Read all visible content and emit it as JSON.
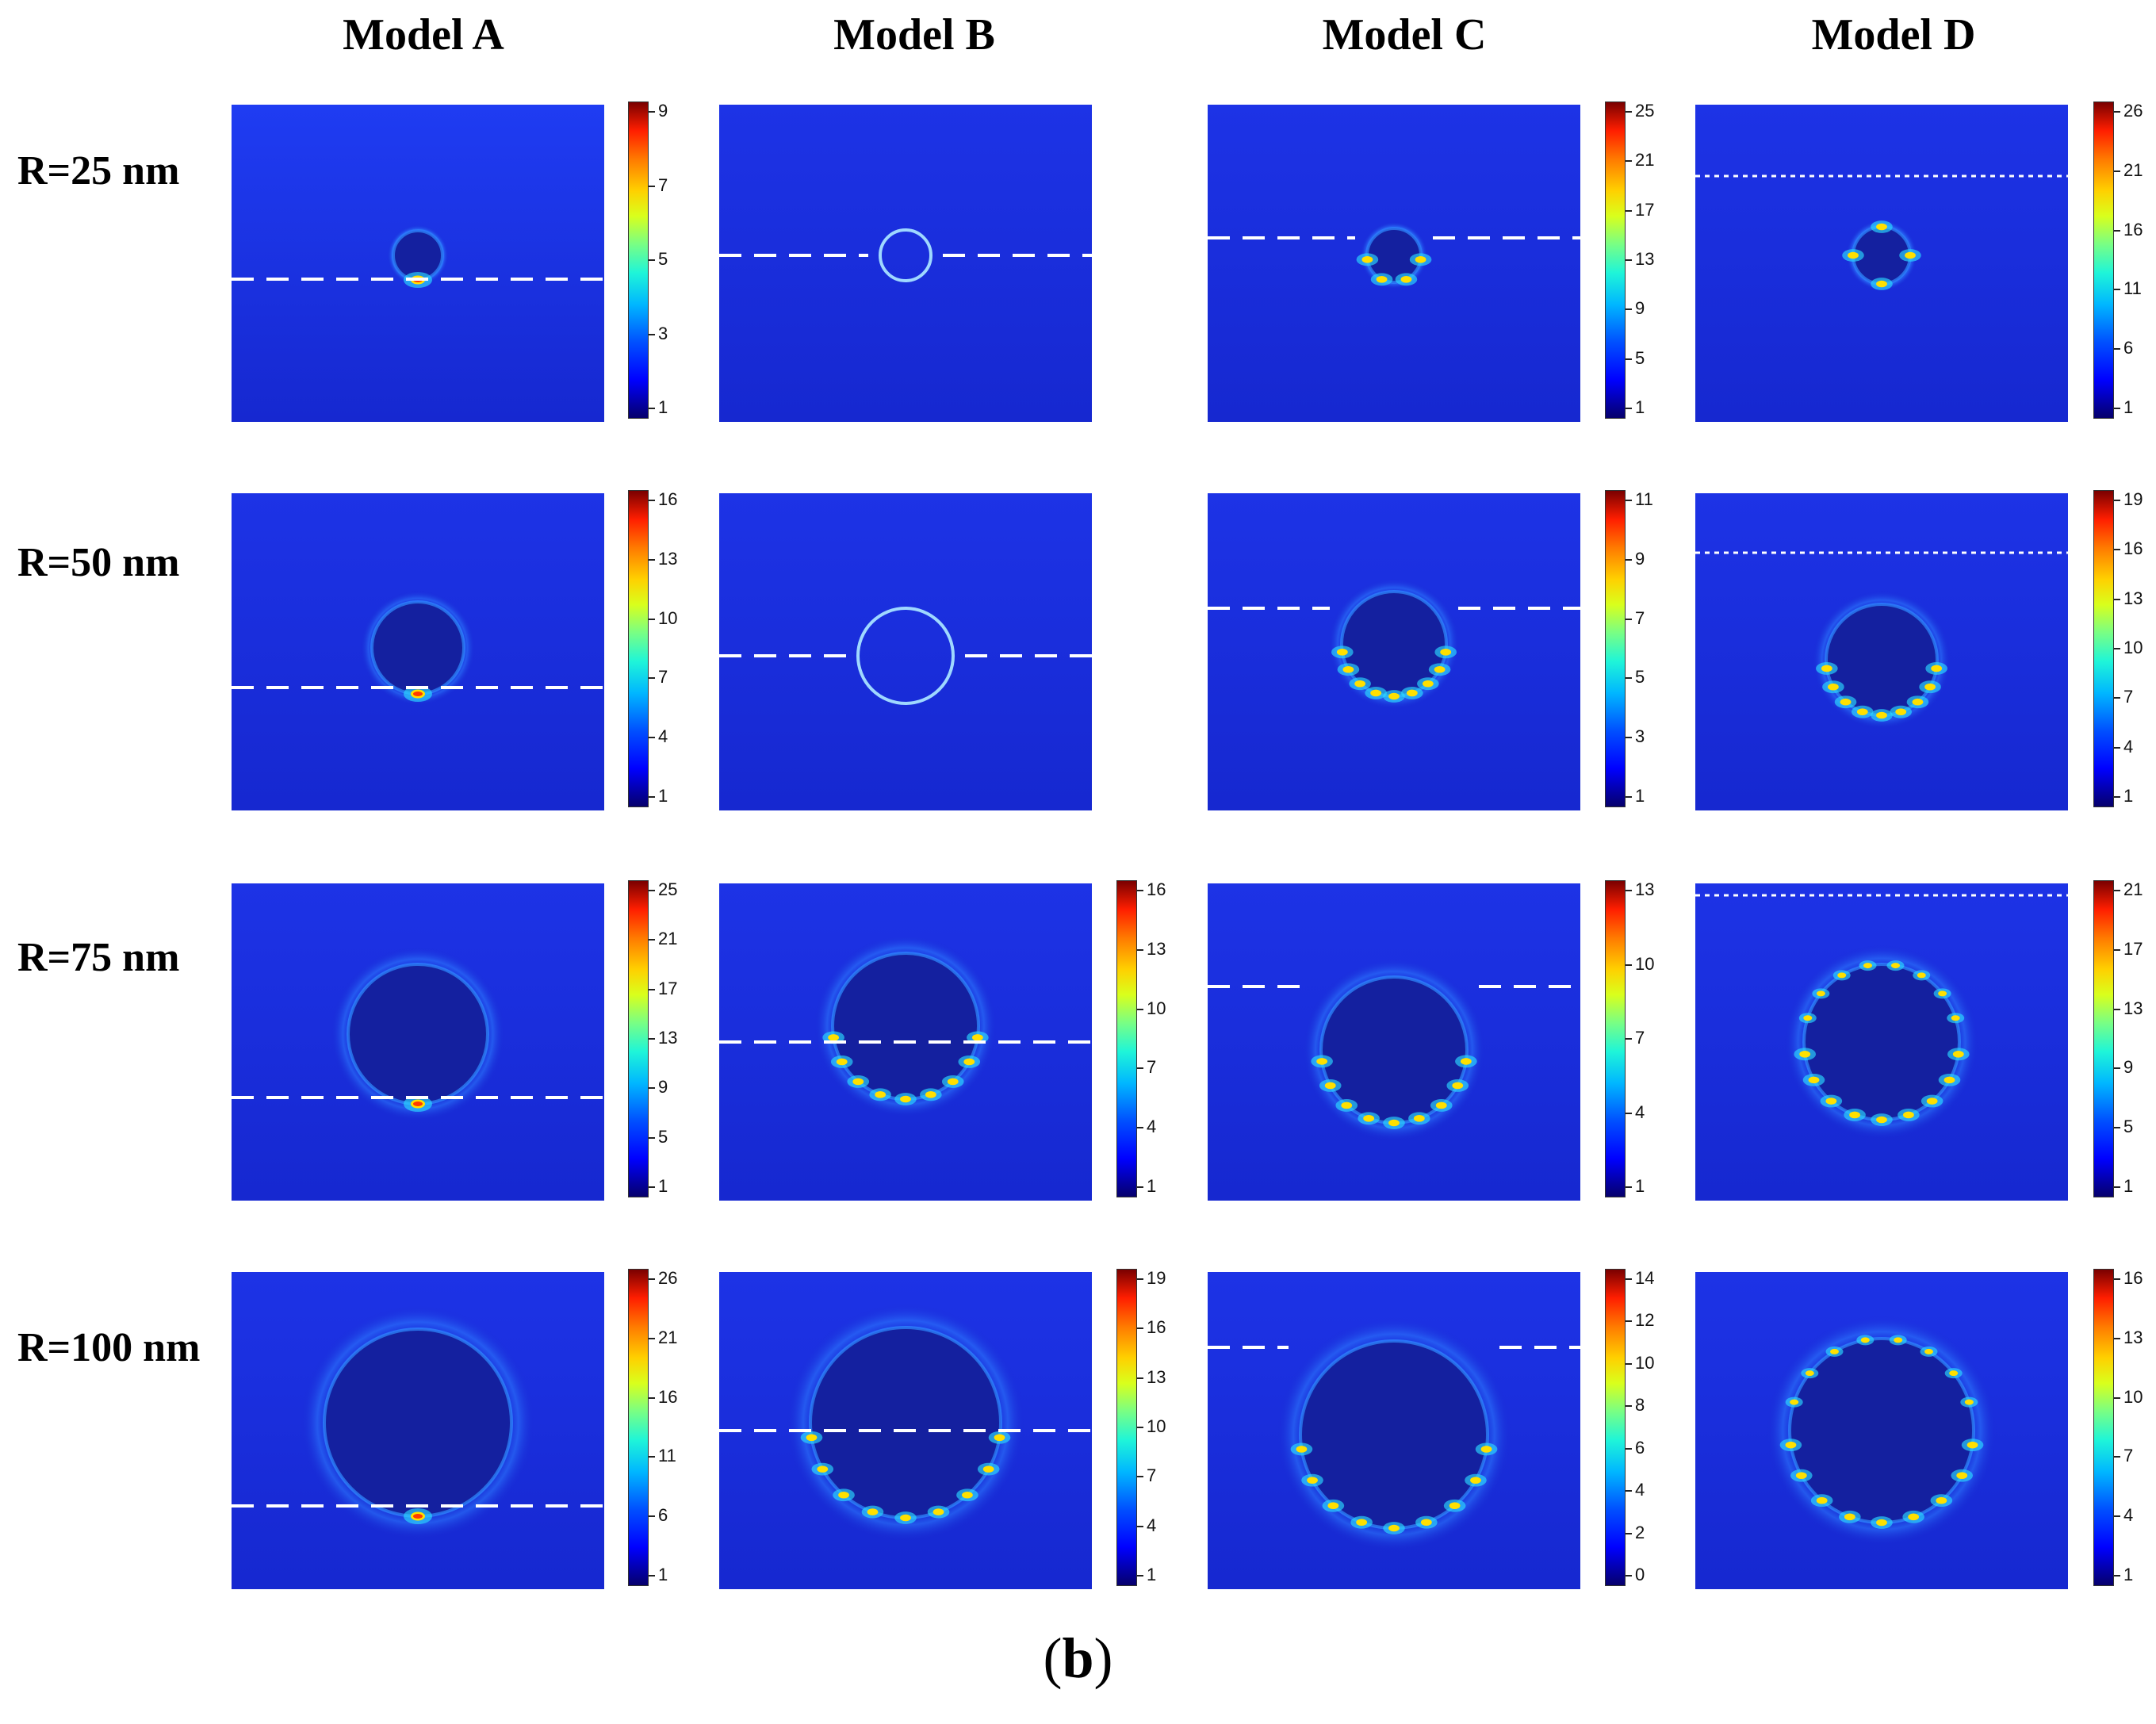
{
  "columns": [
    "Model A",
    "Model B",
    "Model C",
    "Model D"
  ],
  "rows": [
    "R=25 nm",
    "R=50 nm",
    "R=75 nm",
    "R=100 nm"
  ],
  "colorbars": [
    [
      [
        "9",
        "7",
        "5",
        "3",
        "1"
      ],
      [
        "25",
        "21",
        "17",
        "13",
        "9",
        "5",
        "1"
      ],
      [
        "26",
        "21",
        "16",
        "11",
        "6",
        "1"
      ]
    ],
    [
      [
        "16",
        "13",
        "10",
        "7",
        "4",
        "1"
      ],
      [
        "11",
        "9",
        "7",
        "5",
        "3",
        "1"
      ],
      [
        "19",
        "16",
        "13",
        "10",
        "7",
        "4",
        "1"
      ]
    ],
    [
      [
        "25",
        "21",
        "17",
        "13",
        "9",
        "5",
        "1"
      ],
      [
        "16",
        "13",
        "10",
        "7",
        "4",
        "1"
      ],
      [
        "13",
        "10",
        "7",
        "4",
        "1"
      ],
      [
        "21",
        "17",
        "13",
        "9",
        "5",
        "1"
      ]
    ],
    [
      [
        "26",
        "21",
        "16",
        "11",
        "6",
        "1"
      ],
      [
        "19",
        "16",
        "13",
        "10",
        "7",
        "4",
        "1"
      ],
      [
        "14",
        "12",
        "10",
        "8",
        "6",
        "4",
        "2",
        "0"
      ],
      [
        "16",
        "13",
        "10",
        "7",
        "4",
        "1"
      ]
    ]
  ],
  "caption": {
    "open": "(",
    "letter": "b",
    "close": ")"
  },
  "colors": {
    "background_field": "#1a2ed9",
    "particle_interior": "#14209f",
    "dashed_line": "#ffffff"
  }
}
